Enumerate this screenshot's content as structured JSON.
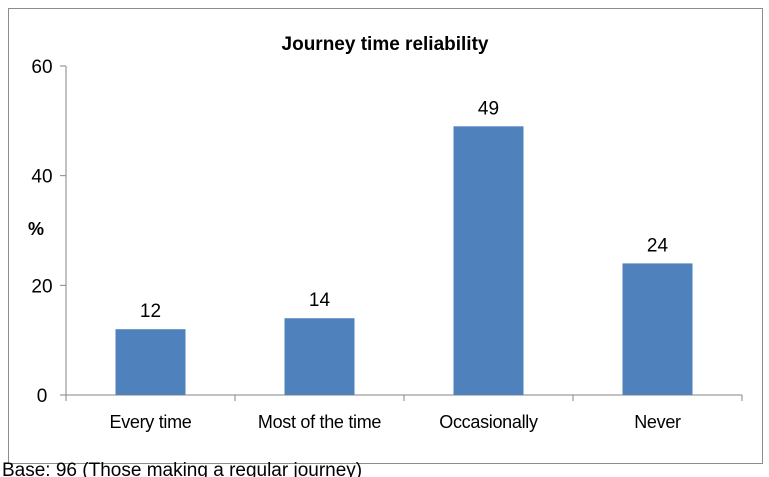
{
  "chart_data": {
    "type": "bar",
    "title": "Journey time reliability",
    "ylabel": "%",
    "xlabel": "",
    "categories": [
      "Every time",
      "Most of the time",
      "Occasionally",
      "Never"
    ],
    "values": [
      12,
      14,
      49,
      24
    ],
    "data_labels": [
      "12",
      "14",
      "49",
      "24"
    ],
    "ylim": [
      0,
      60
    ],
    "yticks": [
      "0",
      "20",
      "40",
      "60"
    ],
    "ytick_values": [
      0,
      20,
      40,
      60
    ],
    "grid": false,
    "legend": "none",
    "bar_color": "#4f81bd"
  },
  "footer": {
    "caption": "Base: 96 (Those making a regular journey)"
  }
}
